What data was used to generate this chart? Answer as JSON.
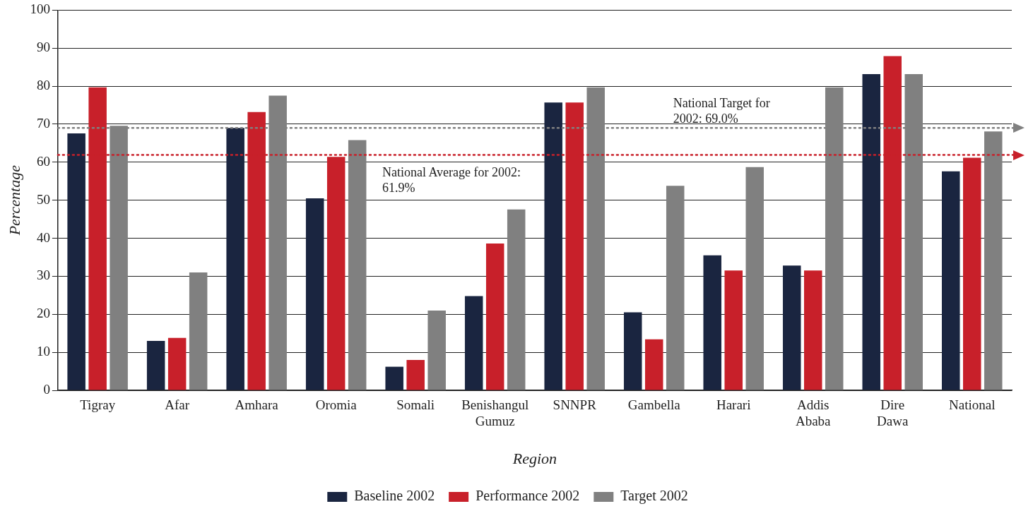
{
  "chart_data": {
    "type": "bar",
    "xlabel": "Region",
    "ylabel": "Percentage",
    "categories": [
      "Tigray",
      "Afar",
      "Amhara",
      "Oromia",
      "Somali",
      "Benishangul Gumuz",
      "SNNPR",
      "Gambella",
      "Harari",
      "Addis Ababa",
      "Dire Dawa",
      "National"
    ],
    "series": [
      {
        "name": "Baseline 2002",
        "color": "#1a2540",
        "values": [
          67.6,
          13.0,
          69.0,
          50.5,
          6.2,
          24.8,
          75.7,
          20.5,
          35.5,
          32.8,
          83.2,
          57.6
        ]
      },
      {
        "name": "Performance 2002",
        "color": "#c8202a",
        "values": [
          79.7,
          13.8,
          73.2,
          61.4,
          8.0,
          38.6,
          75.7,
          13.4,
          31.5,
          31.5,
          87.9,
          61.2
        ]
      },
      {
        "name": "Target 2002",
        "color": "#808080",
        "values": [
          69.6,
          31.0,
          77.5,
          65.8,
          21.0,
          47.6,
          79.7,
          53.8,
          58.7,
          79.7,
          83.2,
          68.1
        ]
      }
    ],
    "ylim": [
      0,
      100
    ],
    "yticks": [
      0,
      10,
      20,
      30,
      40,
      50,
      60,
      70,
      80,
      90,
      100
    ],
    "grid": "y",
    "legend": "bottom",
    "ref_lines": [
      {
        "axis": "y",
        "value": 69.0,
        "label": "National Target for 2002: 69.0%",
        "color": "#808080",
        "line_style": "dotted"
      },
      {
        "axis": "y",
        "value": 61.9,
        "label": "National Average for 2002: 61.9%",
        "color": "#c8202a",
        "line_style": "dotted"
      }
    ]
  }
}
